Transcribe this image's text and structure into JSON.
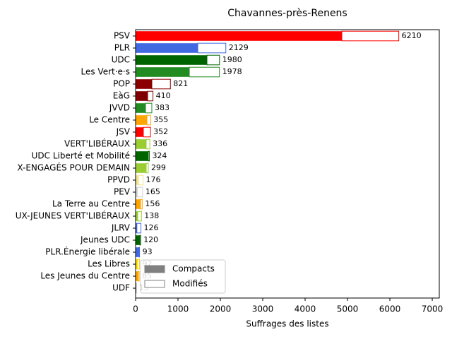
{
  "chart_data": {
    "type": "barh",
    "title": "Chavannes-près-Renens",
    "xlabel": "Suffrages des listes",
    "categories": [
      "PSV",
      "PLR",
      "UDC",
      "Les Vert·e·s",
      "POP",
      "EàG",
      "JVVD",
      "Le Centre",
      "JSV",
      "VERT'LIBÉRAUX",
      "UDC Liberté et Mobilité",
      "X-ENGAGÉS POUR DEMAIN",
      "PPVD",
      "PEV",
      "La Terre au Centre",
      "UX-JEUNES VERT'LIBÉRAUX",
      "JLRV",
      "Jeunes UDC",
      "PLR.Énergie libérale",
      "Les Libres",
      "Les Jeunes du Centre",
      "UDF"
    ],
    "bar_colors": [
      "#ff0000",
      "#4169e1",
      "#006400",
      "#228b22",
      "#8b0000",
      "#800000",
      "#228b22",
      "#ffa500",
      "#ff0000",
      "#9acd32",
      "#006400",
      "#9acd32",
      "#f0e68c",
      "#d3d3d3",
      "#ffa500",
      "#9acd32",
      "#4169e1",
      "#006400",
      "#4169e1",
      "#ffd700",
      "#ffa500",
      "#a0a0a0"
    ],
    "series": [
      {
        "name": "Compacts",
        "color": "#808080",
        "values": [
          4867,
          1467,
          1683,
          1267,
          383,
          283,
          233,
          267,
          183,
          250,
          300,
          250,
          67,
          40,
          117,
          50,
          30,
          100,
          80,
          40,
          60,
          5
        ]
      },
      {
        "name": "Modifiés",
        "color": "#808080",
        "values": [
          1343,
          662,
          297,
          711,
          438,
          127,
          150,
          88,
          169,
          86,
          24,
          49,
          109,
          125,
          39,
          88,
          96,
          20,
          13,
          52,
          25,
          10
        ]
      }
    ],
    "totals": [
      6210,
      2129,
      1980,
      1978,
      821,
      410,
      383,
      355,
      352,
      336,
      324,
      299,
      176,
      165,
      156,
      138,
      126,
      120,
      93,
      92,
      85,
      15
    ],
    "xlim": [
      0,
      7166
    ],
    "xticks": [
      0,
      1000,
      2000,
      3000,
      4000,
      5000,
      6000,
      7000
    ],
    "legend": "lower left"
  }
}
